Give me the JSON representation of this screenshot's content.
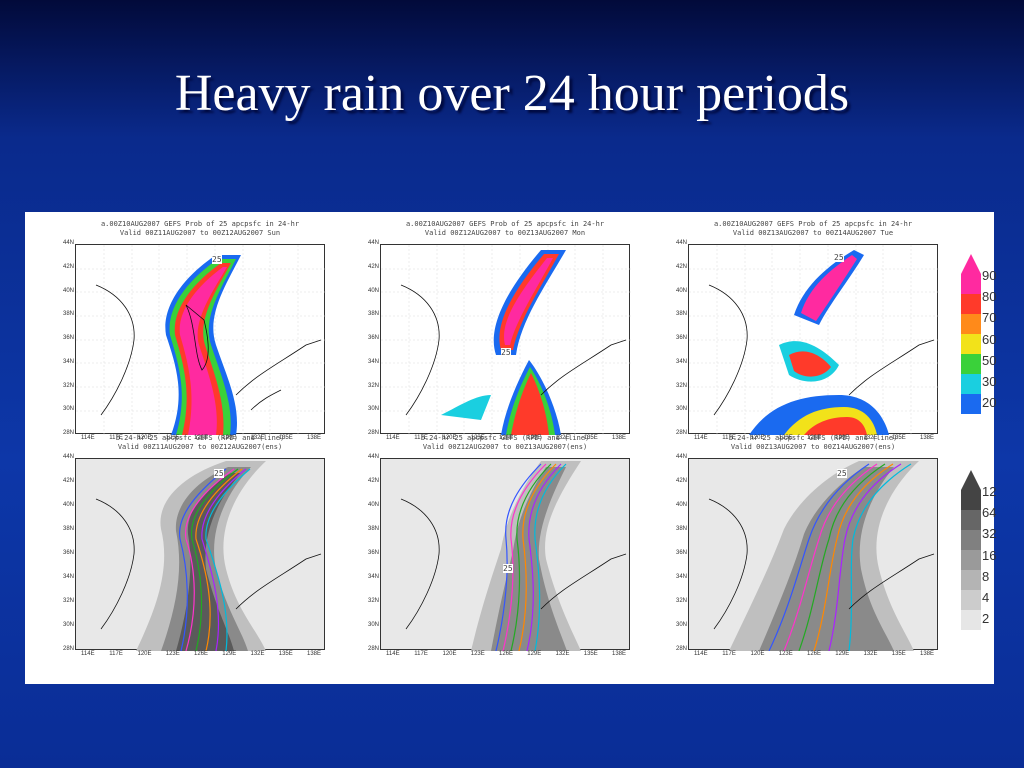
{
  "slide": {
    "title": "Heavy rain over 24 hour periods",
    "background_color": "#0d37a8"
  },
  "panels_top": [
    {
      "title_line1": "a.00Z10AUG2007 GEFS Prob of 25 apcpsfc in 24-hr",
      "title_line2": "Valid 00Z11AUG2007 to 00Z12AUG2007 Sun",
      "contour_label": "25"
    },
    {
      "title_line1": "a.00Z10AUG2007 GEFS Prob of 25 apcpsfc in 24-hr",
      "title_line2": "Valid 00Z12AUG2007 to 00Z13AUG2007 Mon",
      "contour_label": "25"
    },
    {
      "title_line1": "a.00Z10AUG2007 GEFS Prob of 25 apcpsfc in 24-hr",
      "title_line2": "Valid 00Z13AUG2007 to 00Z14AUG2007 Tue",
      "contour_label": "25"
    }
  ],
  "panels_bottom": [
    {
      "title_line1": "b.24-hr 25 apcpsfc GEFS (RPD) and (line)",
      "title_line2": "Valid 00Z11AUG2007 to 00Z12AUG2007(ens)",
      "contour_label": "25"
    },
    {
      "title_line1": "b.24-hr 25 apcpsfc GEFS (RPD) and (line)",
      "title_line2": "Valid 00Z12AUG2007 to 00Z13AUG2007(ens)",
      "contour_label": "25"
    },
    {
      "title_line1": "b.24-hr 25 apcpsfc GEFS (RPD) and (line)",
      "title_line2": "Valid 00Z13AUG2007 to 00Z14AUG2007(ens)",
      "contour_label": "25"
    }
  ],
  "lat_ticks": [
    "44N",
    "42N",
    "40N",
    "38N",
    "36N",
    "34N",
    "32N",
    "30N",
    "28N"
  ],
  "lon_ticks": [
    "114E",
    "117E",
    "120E",
    "123E",
    "126E",
    "129E",
    "132E",
    "135E",
    "138E"
  ],
  "legend_top": {
    "labels": [
      "90",
      "80",
      "70",
      "60",
      "50",
      "30",
      "20"
    ],
    "colors": [
      "#ff2aa0",
      "#ff3a2a",
      "#ff8a1a",
      "#f2e21a",
      "#3ad13a",
      "#1acfe0",
      "#1a6af0"
    ]
  },
  "legend_bottom": {
    "labels": [
      "12",
      "64",
      "32",
      "16",
      "8",
      "4",
      "2"
    ],
    "colors": [
      "#444444",
      "#666666",
      "#808080",
      "#9a9a9a",
      "#b4b4b4",
      "#cccccc",
      "#e6e6e6"
    ]
  }
}
